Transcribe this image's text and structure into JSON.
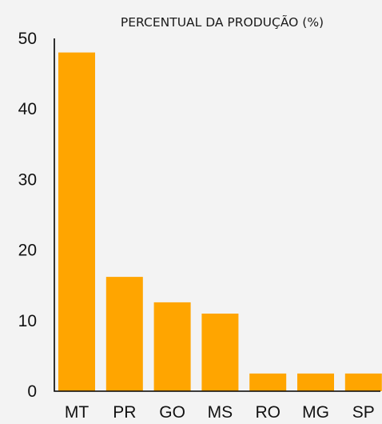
{
  "chart_data": {
    "type": "bar",
    "title": "PERCENTUAL DA PRODUÇÃO (%)",
    "categories": [
      "MT",
      "PR",
      "GO",
      "MS",
      "RO",
      "MG",
      "SP"
    ],
    "values": [
      48,
      16.2,
      12.6,
      11,
      2.5,
      2.5,
      2.5
    ],
    "ylim": [
      0,
      50
    ],
    "yticks": [
      0,
      10,
      20,
      30,
      40,
      50
    ],
    "xlabel": "",
    "ylabel": "",
    "grid": false,
    "bar_color": "#ffa500"
  }
}
